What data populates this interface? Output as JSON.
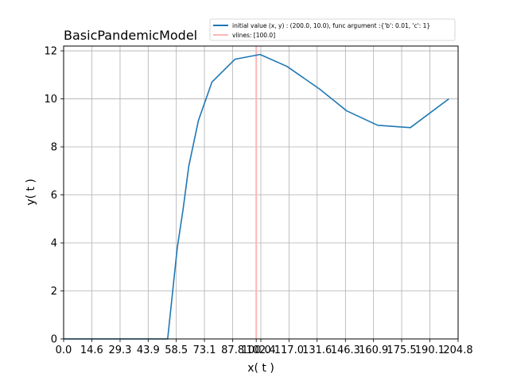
{
  "chart_data": {
    "type": "line",
    "title": "BasicPandemicModel",
    "xlabel": "x( t )",
    "ylabel": "y( t )",
    "xlim": [
      0,
      204.8
    ],
    "ylim": [
      0,
      12.2
    ],
    "grid": true,
    "legend_position": "top-right",
    "x_tick_labels": [
      "0.0",
      "14.6",
      "29.3",
      "43.9",
      "58.5",
      "73.1",
      "87.8",
      "100.0",
      "102.4",
      "117.0",
      "131.6",
      "146.3",
      "160.9",
      "175.5",
      "190.1",
      "204.8"
    ],
    "y_tick_labels": [
      "0",
      "2",
      "4",
      "6",
      "8",
      "10",
      "12"
    ],
    "y_tick_values": [
      0,
      2,
      4,
      6,
      8,
      10,
      12
    ],
    "series": [
      {
        "name": "initial value (x, y) : (200.0, 10.0), func argument :{'b': 0.01, 'c': 1}",
        "color": "#1f77b4",
        "x": [
          0,
          54,
          59,
          62,
          65,
          70,
          77,
          89,
          102,
          116,
          133,
          147,
          163,
          180,
          200
        ],
        "y": [
          0,
          0,
          3.8,
          5.4,
          7.2,
          9.1,
          10.7,
          11.65,
          11.85,
          11.35,
          10.4,
          9.5,
          8.9,
          8.8,
          10.0
        ]
      }
    ],
    "vlines": {
      "name": "vlines: [100.0]",
      "color": "#ffb6b6",
      "x": [
        100.0
      ]
    }
  }
}
